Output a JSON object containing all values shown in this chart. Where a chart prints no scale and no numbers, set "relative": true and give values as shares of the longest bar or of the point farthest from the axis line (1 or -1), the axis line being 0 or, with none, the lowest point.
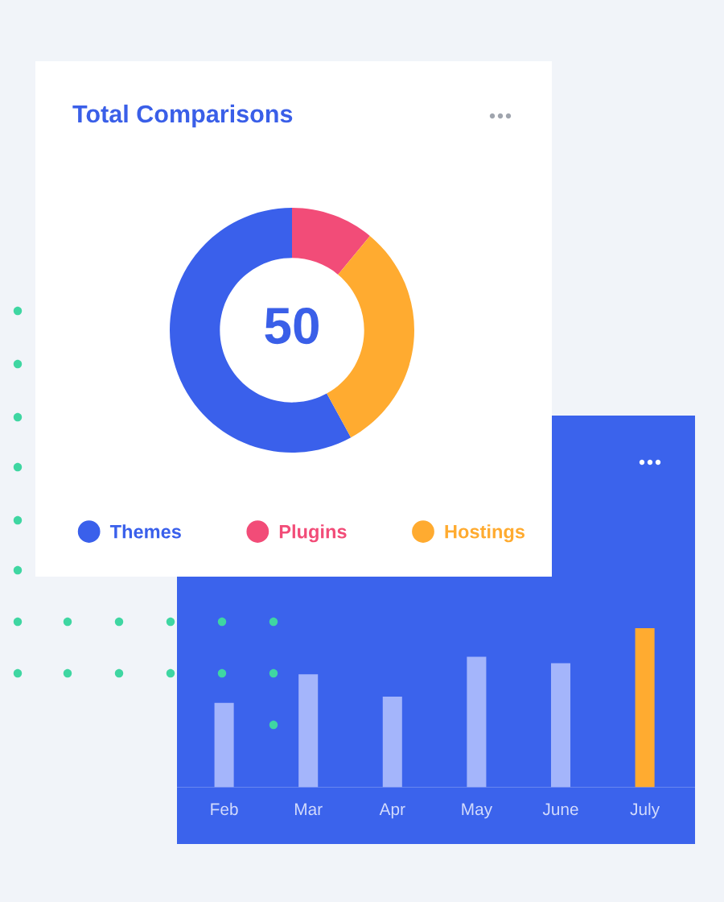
{
  "chart_data": [
    {
      "type": "donut",
      "title": "Total Comparisons",
      "categories": [
        "Themes",
        "Plugins",
        "Hostings"
      ],
      "values": [
        58,
        11,
        31
      ],
      "colors": [
        "#3a60eb",
        "#f24c78",
        "#ffab30"
      ],
      "legend": "bottom",
      "annotations": [
        "50"
      ]
    },
    {
      "type": "bar",
      "categories": [
        "Feb",
        "Mar",
        "Apr",
        "May",
        "June",
        "July"
      ],
      "values": [
        0.53,
        0.71,
        0.57,
        0.82,
        0.78,
        1
      ],
      "colors": [
        "#a4b5fb",
        "#a4b5fb",
        "#a4b5fb",
        "#a4b5fb",
        "#a4b5fb",
        "#ffab30"
      ],
      "relative": true
    }
  ]
}
